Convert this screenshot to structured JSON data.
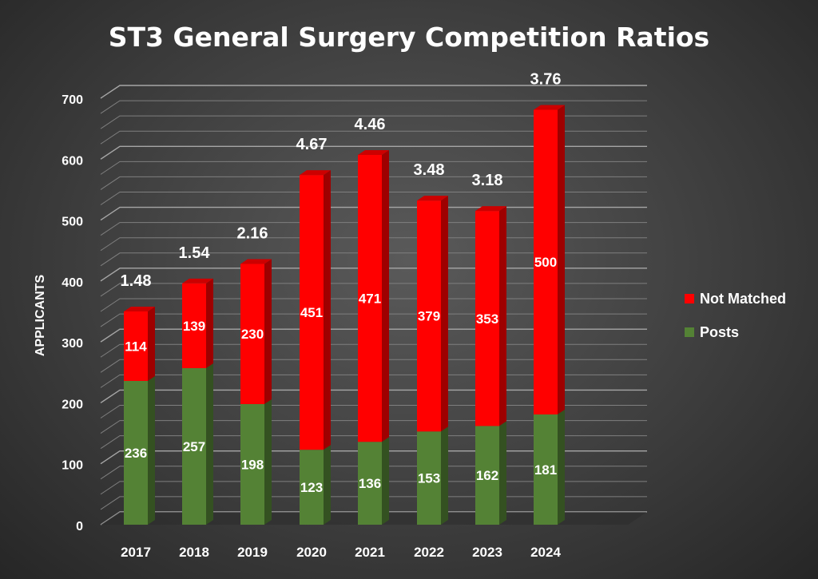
{
  "chart_data": {
    "type": "bar",
    "stacked": true,
    "title": "ST3 General Surgery Competition Ratios",
    "ylabel": "APPLICANTS",
    "xlabel": "",
    "ylim": [
      0,
      700
    ],
    "yticks": [
      0,
      100,
      200,
      300,
      400,
      500,
      600,
      700
    ],
    "categories": [
      "2017",
      "2018",
      "2019",
      "2020",
      "2021",
      "2022",
      "2023",
      "2024"
    ],
    "series": [
      {
        "name": "Posts",
        "color": "#548235",
        "values": [
          236,
          257,
          198,
          123,
          136,
          153,
          162,
          181
        ]
      },
      {
        "name": "Not Matched",
        "color": "#ff0000",
        "values": [
          114,
          139,
          230,
          451,
          471,
          379,
          353,
          500
        ]
      }
    ],
    "ratios": [
      "1.48",
      "1.54",
      "2.16",
      "4.67",
      "4.46",
      "3.48",
      "3.18",
      "3.76"
    ],
    "legend_position": "right",
    "legend": [
      {
        "label": "Not Matched",
        "color": "#ff0000"
      },
      {
        "label": "Posts",
        "color": "#548235"
      }
    ],
    "gridlines": true,
    "style": "3d-column"
  }
}
